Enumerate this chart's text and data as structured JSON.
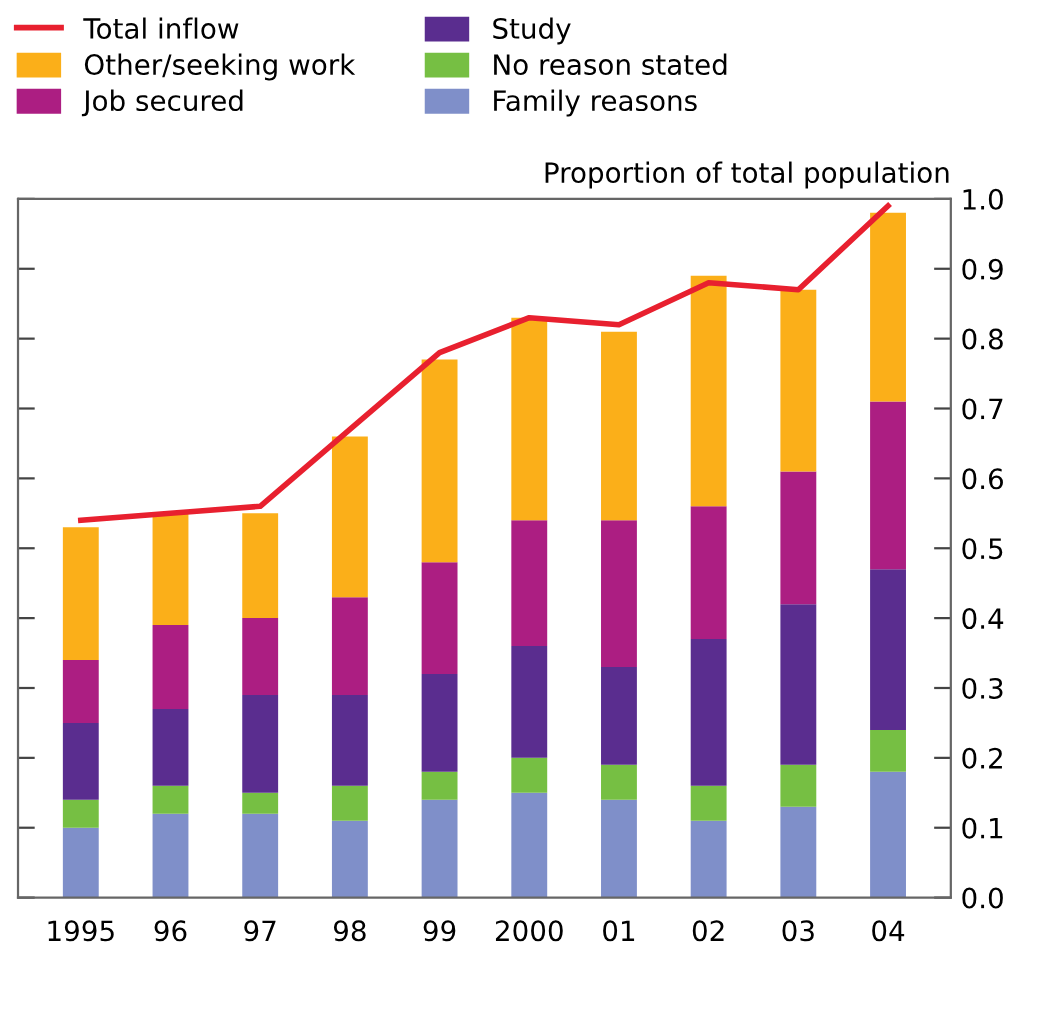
{
  "chart_data": {
    "type": "bar",
    "stacked": true,
    "ylabel": "Proportion of total population",
    "legend": "top",
    "grid": false,
    "categories": [
      "1995",
      "96",
      "97",
      "98",
      "99",
      "2000",
      "01",
      "02",
      "03",
      "04"
    ],
    "series": [
      {
        "name": "Family reasons",
        "color": "#7f8fc9",
        "values": [
          0.1,
          0.12,
          0.12,
          0.11,
          0.14,
          0.15,
          0.14,
          0.11,
          0.13,
          0.18
        ]
      },
      {
        "name": "No reason stated",
        "color": "#76bf43",
        "values": [
          0.04,
          0.04,
          0.03,
          0.05,
          0.04,
          0.05,
          0.05,
          0.05,
          0.06,
          0.06
        ]
      },
      {
        "name": "Study",
        "color": "#5a2d8f",
        "values": [
          0.11,
          0.11,
          0.14,
          0.13,
          0.14,
          0.16,
          0.14,
          0.21,
          0.23,
          0.23
        ]
      },
      {
        "name": "Job secured",
        "color": "#ac1e82",
        "values": [
          0.09,
          0.12,
          0.11,
          0.14,
          0.16,
          0.18,
          0.21,
          0.19,
          0.19,
          0.24
        ]
      },
      {
        "name": "Other/seeking work",
        "color": "#fbaf19",
        "values": [
          0.19,
          0.16,
          0.15,
          0.23,
          0.29,
          0.29,
          0.27,
          0.33,
          0.26,
          0.27
        ]
      },
      {
        "name": "Total inflow",
        "type": "line",
        "color": "#e8202f",
        "values": [
          0.54,
          0.55,
          0.56,
          0.67,
          0.78,
          0.83,
          0.82,
          0.88,
          0.87,
          0.99
        ]
      }
    ],
    "ylim": [
      0,
      1.0
    ],
    "yticks": [
      {
        "value": 0,
        "label": "0.0"
      },
      {
        "value": 0.1,
        "label": "0.1"
      },
      {
        "value": 0.2,
        "label": "0.2"
      },
      {
        "value": 0.3,
        "label": "0.3"
      },
      {
        "value": 0.4,
        "label": "0.4"
      },
      {
        "value": 0.5,
        "label": "0.5"
      },
      {
        "value": 0.6,
        "label": "0.6"
      },
      {
        "value": 0.7,
        "label": "0.7"
      },
      {
        "value": 0.8,
        "label": "0.8"
      },
      {
        "value": 0.9,
        "label": "0.9"
      },
      {
        "value": 1.0,
        "label": "1.0"
      }
    ]
  }
}
